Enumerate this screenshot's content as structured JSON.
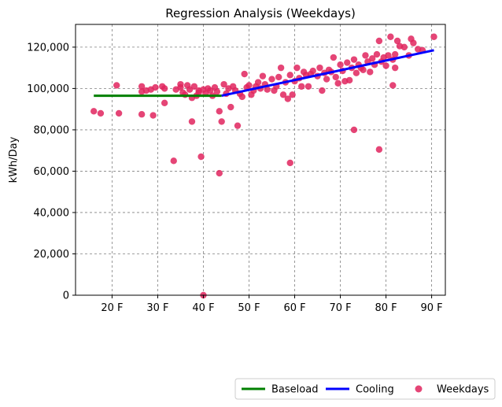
{
  "chart_data": {
    "type": "scatter",
    "title": "Regression Analysis (Weekdays)",
    "xlabel": "",
    "ylabel": "kWh/Day",
    "xlim": [
      12,
      93
    ],
    "ylim": [
      0,
      131000
    ],
    "x_ticks": [
      20,
      30,
      40,
      50,
      60,
      70,
      80,
      90
    ],
    "x_tick_labels": [
      "20 F",
      "30 F",
      "40 F",
      "50 F",
      "60 F",
      "70 F",
      "80 F",
      "90 F"
    ],
    "y_ticks": [
      0,
      20000,
      40000,
      60000,
      80000,
      100000,
      120000
    ],
    "y_tick_labels": [
      "0",
      "20,000",
      "40,000",
      "60,000",
      "80,000",
      "100,000",
      "120,000"
    ],
    "grid": true,
    "legend_position": "bottom-right, outside below plot",
    "legend": [
      {
        "label": "Baseload",
        "kind": "line",
        "color": "#008000"
      },
      {
        "label": "Cooling",
        "kind": "line",
        "color": "#0000ff"
      },
      {
        "label": "Weekdays",
        "kind": "marker",
        "color": "#e0245e"
      }
    ],
    "lines": [
      {
        "name": "Baseload",
        "color": "#008000",
        "x": [
          16,
          44
        ],
        "y": [
          96500,
          96500
        ]
      },
      {
        "name": "Cooling",
        "color": "#0000ff",
        "x": [
          44,
          90.5
        ],
        "y": [
          96500,
          118500
        ]
      }
    ],
    "series": [
      {
        "name": "Weekdays",
        "color": "#e0245e",
        "points": [
          [
            16,
            89000
          ],
          [
            17.5,
            88000
          ],
          [
            21,
            101500
          ],
          [
            21.5,
            88000
          ],
          [
            26.5,
            87500
          ],
          [
            26.5,
            98500
          ],
          [
            26.5,
            101000
          ],
          [
            27.5,
            99000
          ],
          [
            28.5,
            99500
          ],
          [
            29,
            87000
          ],
          [
            29.5,
            100500
          ],
          [
            31,
            101000
          ],
          [
            31.5,
            93000
          ],
          [
            31.5,
            100000
          ],
          [
            33.5,
            65000
          ],
          [
            34,
            99500
          ],
          [
            35,
            100500
          ],
          [
            35,
            102000
          ],
          [
            35.5,
            98000
          ],
          [
            36,
            97000
          ],
          [
            36.5,
            101500
          ],
          [
            37,
            99500
          ],
          [
            37.5,
            84000
          ],
          [
            37.5,
            95500
          ],
          [
            38,
            101000
          ],
          [
            38.5,
            96500
          ],
          [
            39,
            99000
          ],
          [
            39,
            98000
          ],
          [
            39.5,
            67000
          ],
          [
            40,
            0
          ],
          [
            40,
            99500
          ],
          [
            40.5,
            97500
          ],
          [
            41,
            100000
          ],
          [
            41.5,
            99000
          ],
          [
            42,
            96500
          ],
          [
            42.5,
            100500
          ],
          [
            43,
            98500
          ],
          [
            43.5,
            59000
          ],
          [
            43.5,
            89000
          ],
          [
            44,
            84000
          ],
          [
            44.5,
            102000
          ],
          [
            45,
            97500
          ],
          [
            45.5,
            100000
          ],
          [
            46,
            91000
          ],
          [
            46.5,
            101000
          ],
          [
            47,
            99000
          ],
          [
            47.5,
            82000
          ],
          [
            48,
            97500
          ],
          [
            48.5,
            96000
          ],
          [
            49,
            107000
          ],
          [
            49.5,
            100500
          ],
          [
            50,
            101500
          ],
          [
            50.5,
            97000
          ],
          [
            51,
            99000
          ],
          [
            51.5,
            101000
          ],
          [
            52,
            103000
          ],
          [
            52.5,
            100000
          ],
          [
            53,
            106000
          ],
          [
            53.5,
            102000
          ],
          [
            54,
            99500
          ],
          [
            55,
            104500
          ],
          [
            55.5,
            99000
          ],
          [
            56,
            101000
          ],
          [
            56.5,
            105500
          ],
          [
            57,
            110000
          ],
          [
            57.5,
            97000
          ],
          [
            58,
            103000
          ],
          [
            58.5,
            95000
          ],
          [
            59,
            64000
          ],
          [
            59,
            106500
          ],
          [
            59.5,
            97000
          ],
          [
            60,
            103500
          ],
          [
            60.5,
            110000
          ],
          [
            61,
            105000
          ],
          [
            61.5,
            101000
          ],
          [
            62,
            108000
          ],
          [
            62.5,
            106500
          ],
          [
            63,
            101000
          ],
          [
            63.5,
            107000
          ],
          [
            64,
            108500
          ],
          [
            65,
            106000
          ],
          [
            65.5,
            110000
          ],
          [
            66,
            99000
          ],
          [
            66.5,
            107500
          ],
          [
            67,
            104500
          ],
          [
            67.5,
            109000
          ],
          [
            68,
            108000
          ],
          [
            68.5,
            115000
          ],
          [
            69,
            105500
          ],
          [
            69.5,
            102500
          ],
          [
            70,
            111500
          ],
          [
            70.5,
            108500
          ],
          [
            71,
            103500
          ],
          [
            71.5,
            112500
          ],
          [
            72,
            104000
          ],
          [
            72.5,
            110000
          ],
          [
            73,
            80000
          ],
          [
            73,
            114000
          ],
          [
            73.5,
            107500
          ],
          [
            74,
            111500
          ],
          [
            74.5,
            110000
          ],
          [
            75,
            109000
          ],
          [
            75.5,
            116000
          ],
          [
            76,
            113000
          ],
          [
            76.5,
            108000
          ],
          [
            77,
            114500
          ],
          [
            77.5,
            111500
          ],
          [
            78,
            116500
          ],
          [
            78.5,
            70500
          ],
          [
            78.5,
            123000
          ],
          [
            79,
            113000
          ],
          [
            79.5,
            115000
          ],
          [
            80,
            111000
          ],
          [
            80.5,
            116000
          ],
          [
            81,
            125000
          ],
          [
            81.5,
            101500
          ],
          [
            81.5,
            114000
          ],
          [
            82,
            110000
          ],
          [
            82,
            116500
          ],
          [
            82.5,
            123000
          ],
          [
            83,
            120500
          ],
          [
            84,
            120000
          ],
          [
            85,
            116000
          ],
          [
            85.5,
            124000
          ],
          [
            86,
            122000
          ],
          [
            87,
            119000
          ],
          [
            88,
            118500
          ],
          [
            90.5,
            125000
          ]
        ]
      }
    ]
  }
}
